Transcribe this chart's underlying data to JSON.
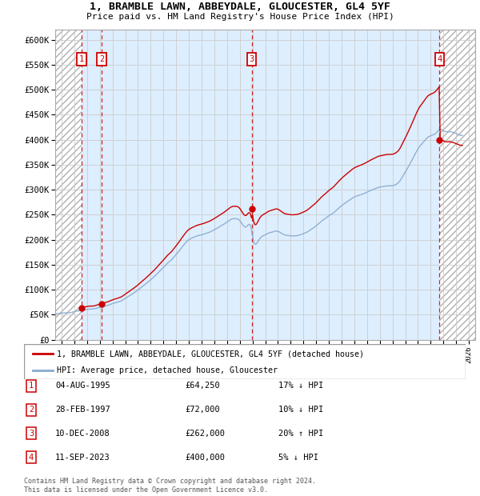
{
  "title": "1, BRAMBLE LAWN, ABBEYDALE, GLOUCESTER, GL4 5YF",
  "subtitle": "Price paid vs. HM Land Registry's House Price Index (HPI)",
  "ylim": [
    0,
    620000
  ],
  "yticks": [
    0,
    50000,
    100000,
    150000,
    200000,
    250000,
    300000,
    350000,
    400000,
    450000,
    500000,
    550000,
    600000
  ],
  "ytick_labels": [
    "£0",
    "£50K",
    "£100K",
    "£150K",
    "£200K",
    "£250K",
    "£300K",
    "£350K",
    "£400K",
    "£450K",
    "£500K",
    "£550K",
    "£600K"
  ],
  "xlim_start": 1993.5,
  "xlim_end": 2026.5,
  "transactions": [
    {
      "year": 1995.58,
      "price": 64250,
      "label": "1"
    },
    {
      "year": 1997.16,
      "price": 72000,
      "label": "2"
    },
    {
      "year": 2008.94,
      "price": 262000,
      "label": "3"
    },
    {
      "year": 2023.7,
      "price": 400000,
      "label": "4"
    }
  ],
  "sale_color": "#cc0000",
  "hpi_color": "#88aacc",
  "hatch_color": "#bbbbbb",
  "blue_bg": "#ddeeff",
  "grid_color": "#cccccc",
  "legend_sale": "1, BRAMBLE LAWN, ABBEYDALE, GLOUCESTER, GL4 5YF (detached house)",
  "legend_hpi": "HPI: Average price, detached house, Gloucester",
  "table_rows": [
    {
      "num": "1",
      "date": "04-AUG-1995",
      "price": "£64,250",
      "hpi": "17% ↓ HPI"
    },
    {
      "num": "2",
      "date": "28-FEB-1997",
      "price": "£72,000",
      "hpi": "10% ↓ HPI"
    },
    {
      "num": "3",
      "date": "10-DEC-2008",
      "price": "£262,000",
      "hpi": "20% ↑ HPI"
    },
    {
      "num": "4",
      "date": "11-SEP-2023",
      "price": "£400,000",
      "hpi": "5% ↓ HPI"
    }
  ],
  "footer": "Contains HM Land Registry data © Crown copyright and database right 2024.\nThis data is licensed under the Open Government Licence v3.0."
}
